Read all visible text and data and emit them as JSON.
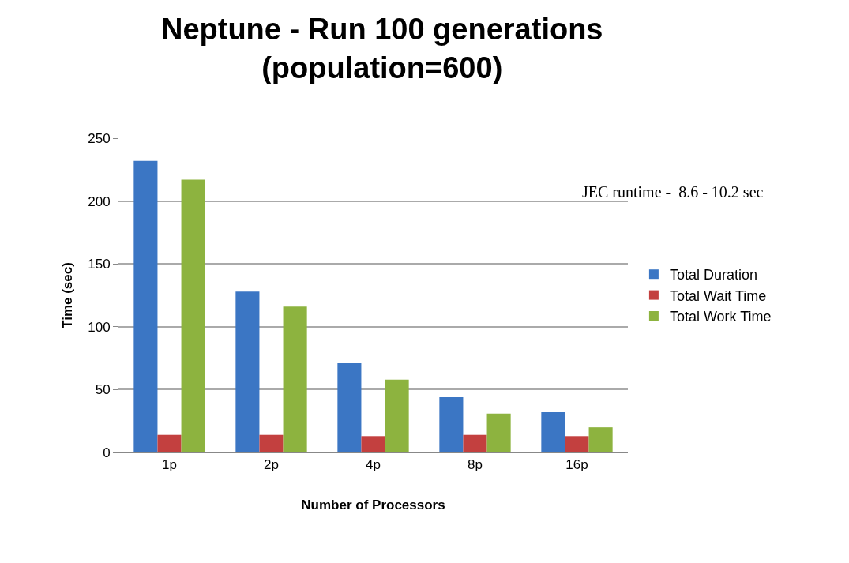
{
  "chart_data": {
    "type": "bar",
    "title": "Neptune - Run 100 generations\n(population=600)",
    "xlabel": "Number of Processors",
    "ylabel": "Time (sec)",
    "categories": [
      "1p",
      "2p",
      "4p",
      "8p",
      "16p"
    ],
    "series": [
      {
        "name": "Total Duration",
        "color": "#3b76c4",
        "values": [
          232,
          128,
          71,
          44,
          32
        ]
      },
      {
        "name": "Total Wait Time",
        "color": "#c3403f",
        "values": [
          14,
          14,
          13,
          14,
          13
        ]
      },
      {
        "name": "Total Work Time",
        "color": "#8db33f",
        "values": [
          217,
          116,
          58,
          31,
          20
        ]
      }
    ],
    "ylim": [
      0,
      250
    ],
    "yticks": [
      0,
      50,
      100,
      150,
      200,
      250
    ],
    "grid": "y",
    "legend": "right",
    "annotations": [
      "JEC runtime -  8.6 - 10.2 sec"
    ]
  }
}
